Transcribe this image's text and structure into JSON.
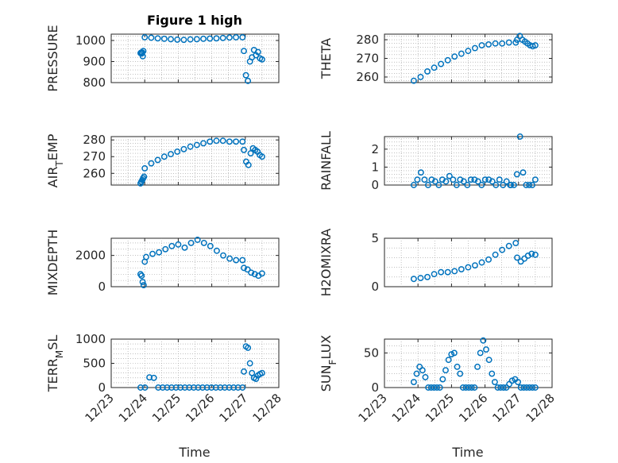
{
  "figure": {
    "title": "Figure 1 high",
    "xlabel": "Time",
    "marker_color": "#0072BD"
  },
  "chart_data": [
    {
      "type": "scatter",
      "title": "Figure 1 high",
      "xlabel": "",
      "ylabel": "PRESSURE",
      "ylabel_parts": [
        [
          "PRESSURE",
          "n"
        ]
      ],
      "ylim": [
        800,
        1030
      ],
      "yticks": [
        800,
        900,
        1000
      ],
      "grid": true,
      "x_ticks": [
        "12/23",
        "12/24",
        "12/25",
        "12/26",
        "12/27",
        "12/28"
      ],
      "xlim": [
        "12/23",
        "12/28"
      ],
      "show_xticklabels": false,
      "segments": [
        {
          "x_start": "12/23 21:00",
          "x_end": "12/23 23:00",
          "values": [
            940,
            942,
            938,
            943,
            925,
            950
          ]
        },
        {
          "x_start": "12/24 00:00",
          "x_end": "12/26 22:00",
          "values": [
            1015,
            1013,
            1010,
            1008,
            1006,
            1004,
            1003,
            1005,
            1006,
            1008,
            1009,
            1010,
            1012,
            1014,
            1015,
            1015
          ]
        },
        {
          "x_start": "12/26 23:00",
          "x_end": "12/27 12:00",
          "values": [
            950,
            835,
            808,
            900,
            920,
            955,
            930,
            945,
            915,
            910
          ]
        }
      ]
    },
    {
      "type": "scatter",
      "title": "",
      "xlabel": "",
      "ylabel": "THETA",
      "ylabel_parts": [
        [
          "THETA",
          "n"
        ]
      ],
      "ylim": [
        257,
        283
      ],
      "yticks": [
        260,
        270,
        280
      ],
      "grid": true,
      "x_ticks": [
        "12/23",
        "12/24",
        "12/25",
        "12/26",
        "12/27",
        "12/28"
      ],
      "xlim": [
        "12/23",
        "12/28"
      ],
      "show_xticklabels": false,
      "segments": [
        {
          "x_start": "12/23 21:00",
          "x_end": "12/26 22:00",
          "values": [
            258,
            260,
            263,
            265,
            267,
            269,
            271,
            272.5,
            274,
            275.5,
            277,
            277.5,
            278,
            278,
            278.5,
            278.5
          ]
        },
        {
          "x_start": "12/26 23:00",
          "x_end": "12/27 12:00",
          "values": [
            280,
            282,
            280,
            279,
            278,
            277,
            276.5,
            277
          ]
        }
      ]
    },
    {
      "type": "scatter",
      "title": "",
      "xlabel": "",
      "ylabel": "AIR_TEMP",
      "ylabel_parts": [
        [
          "AIR",
          "n"
        ],
        [
          "T",
          "sub"
        ],
        [
          "EMP",
          "n"
        ]
      ],
      "ylim": [
        253,
        282
      ],
      "yticks": [
        260,
        270,
        280
      ],
      "grid": true,
      "x_ticks": [
        "12/23",
        "12/24",
        "12/25",
        "12/26",
        "12/27",
        "12/28"
      ],
      "xlim": [
        "12/23",
        "12/28"
      ],
      "show_xticklabels": false,
      "segments": [
        {
          "x_start": "12/23 21:00",
          "x_end": "12/23 23:30",
          "values": [
            254,
            255,
            256,
            257,
            258
          ]
        },
        {
          "x_start": "12/24 00:00",
          "x_end": "12/26 22:00",
          "values": [
            263,
            266,
            268,
            270,
            271.5,
            273,
            274.5,
            276,
            277,
            278,
            279,
            279.5,
            279.5,
            279,
            279,
            279
          ]
        },
        {
          "x_start": "12/26 23:00",
          "x_end": "12/27 12:00",
          "values": [
            274,
            267,
            265,
            272,
            275,
            274,
            273,
            271,
            270
          ]
        }
      ]
    },
    {
      "type": "scatter",
      "title": "",
      "xlabel": "",
      "ylabel": "RAINFALL",
      "ylabel_parts": [
        [
          "RAINFALL",
          "n"
        ]
      ],
      "ylim": [
        0,
        2.7
      ],
      "yticks": [
        0,
        1,
        2
      ],
      "grid": true,
      "x_ticks": [
        "12/23",
        "12/24",
        "12/25",
        "12/26",
        "12/27",
        "12/28"
      ],
      "xlim": [
        "12/23",
        "12/28"
      ],
      "show_xticklabels": false,
      "segments": [
        {
          "x_start": "12/23 21:00",
          "x_end": "12/26 18:00",
          "values": [
            0,
            0.3,
            0.7,
            0.3,
            0,
            0.3,
            0.2,
            0,
            0.3,
            0.2,
            0.5,
            0.3,
            0,
            0.3,
            0.2,
            0,
            0.3,
            0.3,
            0.2,
            0,
            0.3,
            0.3,
            0.2,
            0,
            0.3,
            0,
            0.2,
            0
          ]
        },
        {
          "x_start": "12/26 18:30",
          "x_end": "12/27 12:00",
          "values": [
            0,
            0,
            0.6,
            2.7,
            0.7,
            0,
            0,
            0,
            0.3
          ]
        }
      ]
    },
    {
      "type": "scatter",
      "title": "",
      "xlabel": "",
      "ylabel": "MIXDEPTH",
      "ylabel_parts": [
        [
          "MIXDEPTH",
          "n"
        ]
      ],
      "ylim": [
        0,
        3100
      ],
      "yticks": [
        0,
        2000
      ],
      "grid": true,
      "x_ticks": [
        "12/23",
        "12/24",
        "12/25",
        "12/26",
        "12/27",
        "12/28"
      ],
      "xlim": [
        "12/23",
        "12/28"
      ],
      "show_xticklabels": false,
      "segments": [
        {
          "x_start": "12/23 21:00",
          "x_end": "12/24 00:00",
          "values": [
            800,
            700,
            300,
            100,
            1600
          ]
        },
        {
          "x_start": "12/24 01:00",
          "x_end": "12/26 22:00",
          "values": [
            1900,
            2100,
            2200,
            2400,
            2600,
            2700,
            2500,
            2800,
            3000,
            2800,
            2600,
            2300,
            2000,
            1800,
            1700,
            1700
          ]
        },
        {
          "x_start": "12/26 23:00",
          "x_end": "12/27 12:00",
          "values": [
            1200,
            1100,
            900,
            800,
            700,
            850
          ]
        }
      ]
    },
    {
      "type": "scatter",
      "title": "",
      "xlabel": "",
      "ylabel": "H2OMIXRA",
      "ylabel_parts": [
        [
          "H2OMIXRA",
          "n"
        ]
      ],
      "ylim": [
        0,
        5
      ],
      "yticks": [
        0,
        5
      ],
      "grid": true,
      "x_ticks": [
        "12/23",
        "12/24",
        "12/25",
        "12/26",
        "12/27",
        "12/28"
      ],
      "xlim": [
        "12/23",
        "12/28"
      ],
      "show_xticklabels": false,
      "segments": [
        {
          "x_start": "12/23 21:00",
          "x_end": "12/26 22:00",
          "values": [
            0.8,
            0.9,
            1.0,
            1.3,
            1.5,
            1.5,
            1.6,
            1.8,
            2.0,
            2.2,
            2.5,
            2.8,
            3.3,
            3.8,
            4.2,
            4.5
          ]
        },
        {
          "x_start": "12/26 23:00",
          "x_end": "12/27 12:00",
          "values": [
            3.0,
            2.6,
            2.9,
            3.2,
            3.4,
            3.3
          ]
        }
      ]
    },
    {
      "type": "scatter",
      "title": "",
      "xlabel": "Time",
      "ylabel": "TERR_MSL",
      "ylabel_parts": [
        [
          "TERR",
          "n"
        ],
        [
          "M",
          "sub"
        ],
        [
          "SL",
          "n"
        ]
      ],
      "ylim": [
        0,
        1000
      ],
      "yticks": [
        0,
        500,
        1000
      ],
      "grid": true,
      "x_ticks": [
        "12/23",
        "12/24",
        "12/25",
        "12/26",
        "12/27",
        "12/28"
      ],
      "xlim": [
        "12/23",
        "12/28"
      ],
      "show_xticklabels": true,
      "segments": [
        {
          "x_start": "12/23 21:00",
          "x_end": "12/26 22:00",
          "values": [
            0,
            0,
            210,
            200,
            0,
            0,
            0,
            0,
            0,
            0,
            0,
            0,
            0,
            0,
            0,
            0,
            0,
            0,
            0,
            0,
            0,
            0,
            0,
            0
          ]
        },
        {
          "x_start": "12/26 23:00",
          "x_end": "12/27 12:00",
          "values": [
            330,
            850,
            820,
            500,
            300,
            200,
            180,
            250,
            280,
            300
          ]
        }
      ]
    },
    {
      "type": "scatter",
      "title": "",
      "xlabel": "Time",
      "ylabel": "SUN_FLUX",
      "ylabel_parts": [
        [
          "SUN",
          "n"
        ],
        [
          "F",
          "sub"
        ],
        [
          "LUX",
          "n"
        ]
      ],
      "ylim": [
        0,
        70
      ],
      "yticks": [
        0,
        50
      ],
      "grid": true,
      "x_ticks": [
        "12/23",
        "12/24",
        "12/25",
        "12/26",
        "12/27",
        "12/28"
      ],
      "xlim": [
        "12/23",
        "12/28"
      ],
      "show_xticklabels": true,
      "segments": [
        {
          "x_start": "12/23 21:00",
          "x_end": "12/27 12:00",
          "values": [
            8,
            20,
            30,
            25,
            15,
            0,
            0,
            0,
            0,
            0,
            12,
            25,
            40,
            48,
            50,
            30,
            20,
            0,
            0,
            0,
            0,
            0,
            30,
            50,
            68,
            55,
            40,
            20,
            8,
            0,
            0,
            0,
            0,
            5,
            10,
            12,
            8,
            0,
            0,
            0,
            0,
            0,
            0
          ]
        }
      ]
    }
  ]
}
